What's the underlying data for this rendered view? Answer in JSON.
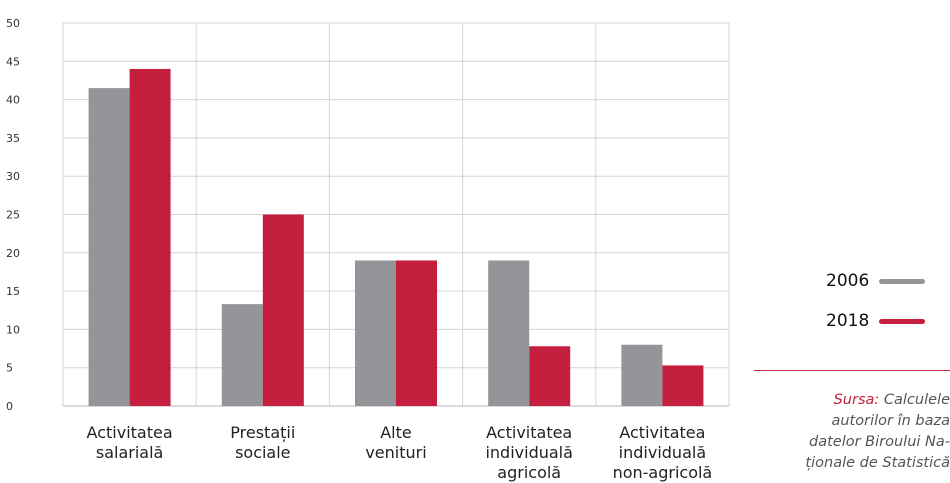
{
  "chart_data": {
    "type": "bar",
    "categories": [
      [
        "Activitatea",
        "salarială"
      ],
      [
        "Prestații",
        "sociale"
      ],
      [
        "Alte",
        "venituri"
      ],
      [
        "Activitatea",
        "individuală",
        "agricolă"
      ],
      [
        "Activitatea",
        "individuală",
        "non-agricolă"
      ]
    ],
    "series": [
      {
        "name": "2006",
        "values": [
          41.5,
          13.3,
          19,
          19,
          8
        ],
        "color": "#939598"
      },
      {
        "name": "2018",
        "values": [
          44,
          25,
          19,
          7.8,
          5.3
        ],
        "color": "#c41f3e"
      }
    ],
    "ylim": [
      0,
      50
    ],
    "yticks": [
      "0",
      "5",
      "10",
      "15",
      "20",
      "25",
      "30",
      "35",
      "40",
      "45",
      "50"
    ],
    "grid": true,
    "legend_position": "right"
  },
  "source": {
    "label": "Sursa:",
    "lines": [
      "Calculele",
      "autorilor în baza",
      "datelor Biroului Na-",
      "ționale de Statistică"
    ]
  }
}
